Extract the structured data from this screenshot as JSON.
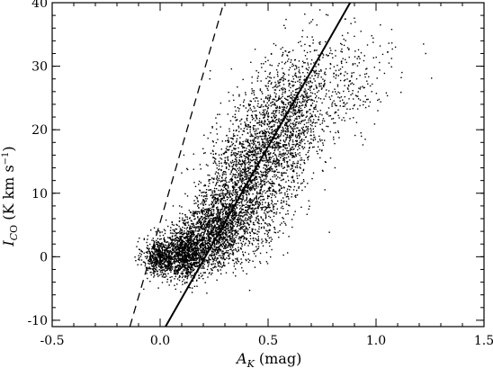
{
  "chart_data": {
    "type": "scatter",
    "title": "",
    "xlabel": {
      "main": "A",
      "sub": "K",
      "rest": " (mag)"
    },
    "ylabel": {
      "main": "I",
      "sub": "",
      "rest": " (K km s",
      "sup": "−1",
      "end": ")"
    },
    "ylabel_sub_parts": {
      "italic": "C",
      "normal": "O"
    },
    "xlim": [
      -0.5,
      1.5
    ],
    "ylim": [
      -11,
      40
    ],
    "x_ticks": [
      -0.5,
      0.0,
      0.5,
      1.0,
      1.5
    ],
    "x_tick_labels": [
      "-0.5",
      "0.0",
      "0.5",
      "1.0",
      "1.5"
    ],
    "y_ticks": [
      -10,
      0,
      10,
      20,
      30,
      40
    ],
    "y_tick_labels": [
      "-10",
      "0",
      "10",
      "20",
      "30",
      "40"
    ],
    "x_minor_step": 0.1,
    "y_minor_step": 2,
    "grid": false,
    "lines": [
      {
        "style": "solid",
        "x": [
          0.025,
          0.88
        ],
        "y": [
          -11,
          40
        ]
      },
      {
        "style": "dashed",
        "x": [
          -0.14,
          0.295
        ],
        "y": [
          -11,
          40
        ]
      }
    ],
    "point_cloud": {
      "count": 6500,
      "clusters": [
        {
          "x": 0.0,
          "y": 0.0,
          "sx": 0.04,
          "sy": 1.5,
          "weight": 0.09
        },
        {
          "x": 0.12,
          "y": 0.5,
          "sx": 0.05,
          "sy": 2.0,
          "weight": 0.18
        },
        {
          "x": 0.25,
          "y": 4.0,
          "sx": 0.07,
          "sy": 3.0,
          "weight": 0.2
        },
        {
          "x": 0.38,
          "y": 10.0,
          "sx": 0.09,
          "sy": 4.5,
          "weight": 0.2
        },
        {
          "x": 0.5,
          "y": 17.0,
          "sx": 0.09,
          "sy": 5.0,
          "weight": 0.17
        },
        {
          "x": 0.62,
          "y": 23.0,
          "sx": 0.08,
          "sy": 4.5,
          "weight": 0.11
        },
        {
          "x": 0.82,
          "y": 28.0,
          "sx": 0.12,
          "sy": 4.0,
          "weight": 0.05
        }
      ],
      "extra_points": [
        [
          1.22,
          33.5
        ],
        [
          1.23,
          32.0
        ],
        [
          1.12,
          29.0
        ],
        [
          1.06,
          30.5
        ],
        [
          1.02,
          36.5
        ],
        [
          0.98,
          34.8
        ],
        [
          0.93,
          35.5
        ],
        [
          0.93,
          19.5
        ],
        [
          0.95,
          18.5
        ],
        [
          0.81,
          14.0
        ],
        [
          0.67,
          38.2
        ],
        [
          0.7,
          37.0
        ],
        [
          0.78,
          31.7
        ],
        [
          0.77,
          31.8
        ],
        [
          0.1,
          13.2
        ],
        [
          0.11,
          16.0
        ],
        [
          0.09,
          8.0
        ],
        [
          0.23,
          28.0
        ],
        [
          0.58,
          36.0
        ],
        [
          1.09,
          33.0
        ]
      ]
    }
  }
}
